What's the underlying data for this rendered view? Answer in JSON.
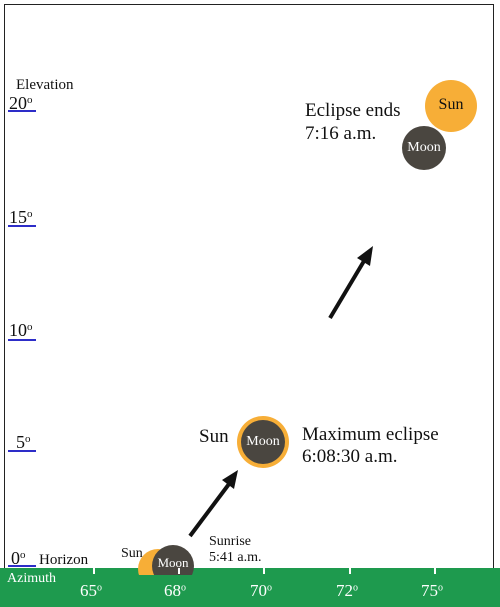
{
  "y_axis": {
    "title": "Elevation",
    "ticks": [
      "0",
      "5",
      "10",
      "15",
      "20"
    ],
    "unit_superscript": "o",
    "line_color": "#2d2dc8"
  },
  "x_axis": {
    "title": "Azimuth",
    "ticks": [
      "65",
      "68",
      "70",
      "72",
      "75"
    ],
    "unit_superscript": "o",
    "band_color": "#1e9a4e"
  },
  "horizon_label": "Horizon",
  "colors": {
    "sun": "#f7ae37",
    "moon": "#4a4640",
    "arrow": "#111111"
  },
  "events": {
    "sunrise": {
      "sun_label": "Sun",
      "moon_label": "Moon",
      "caption_line1": "Sunrise",
      "caption_line2": "5:41 a.m."
    },
    "maximum": {
      "sun_label": "Sun",
      "moon_label": "Moon",
      "caption_line1": "Maximum eclipse",
      "caption_line2": "6:08:30 a.m."
    },
    "end": {
      "sun_label": "Sun",
      "moon_label": "Moon",
      "caption_line1": "Eclipse ends",
      "caption_line2": "7:16 a.m."
    }
  }
}
